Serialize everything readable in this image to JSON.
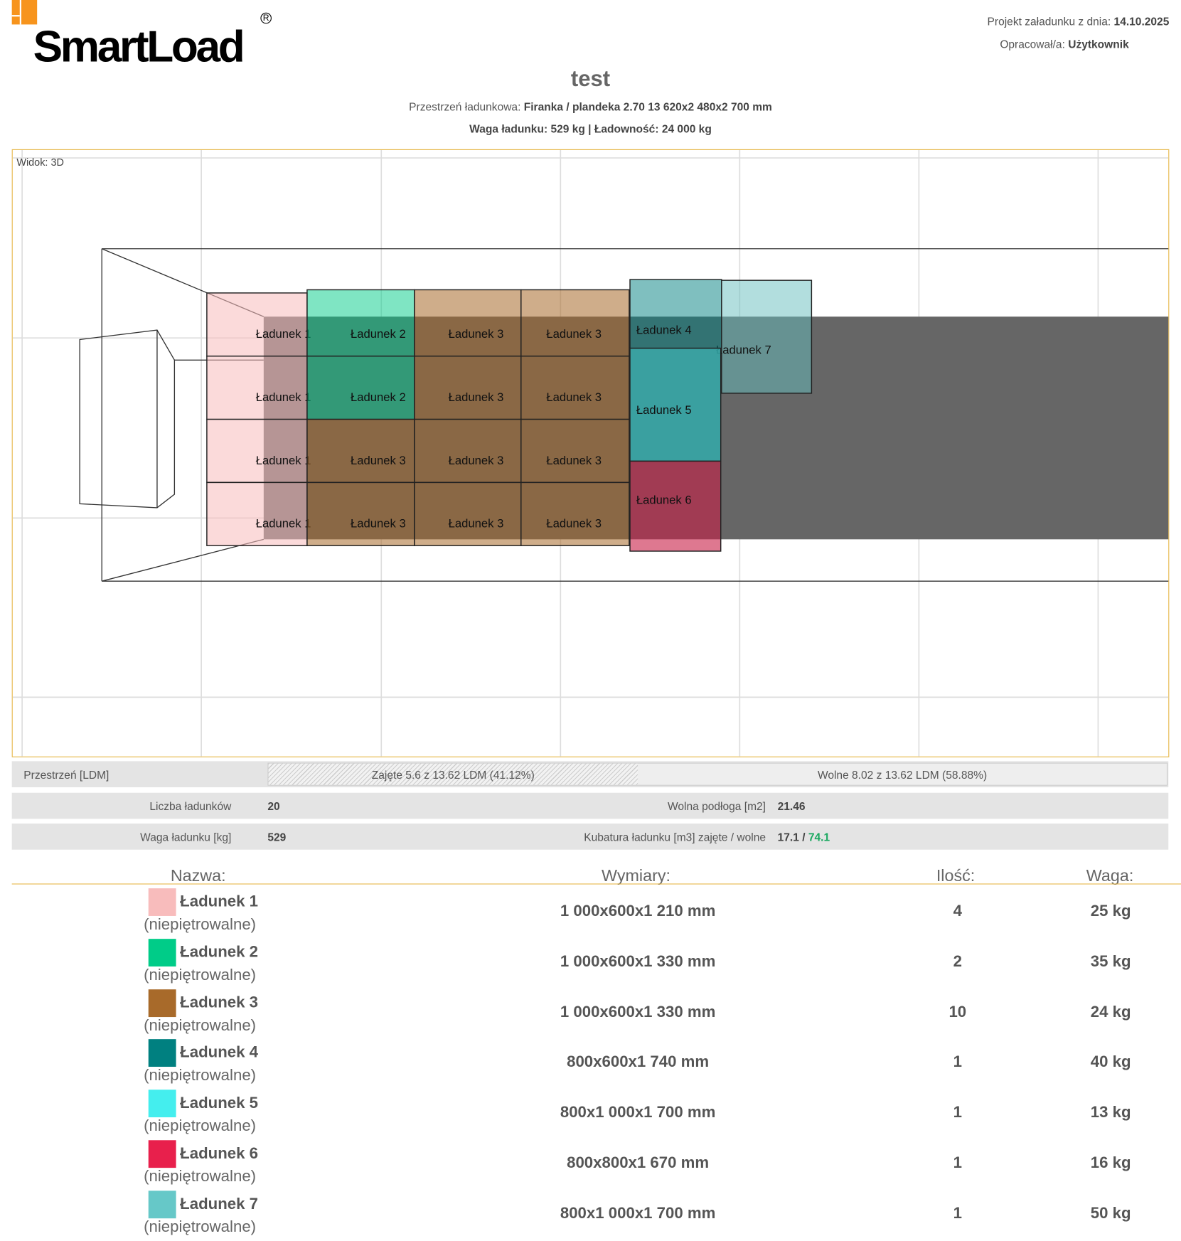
{
  "header": {
    "logo_text": "SmartLoad",
    "date_label": "Projekt załadunku z dnia:",
    "date_value": "14.10.2025",
    "author_label": "Opracował/a:",
    "author_value": "Użytkownik",
    "title": "test",
    "space_label": "Przestrzeń ładunkowa:",
    "space_value": "Firanka / plandeka 2.70 13 620x2 480x2 700 mm",
    "weight_line": "Waga ładunku: 529 kg | Ładowność: 24 000 kg"
  },
  "view": {
    "label": "Widok: 3D",
    "box_label_prefix": "Ładunek"
  },
  "stats": {
    "ldm_label": "Przestrzeń [LDM]",
    "ldm_used_text": "Zajęte 5.6 z 13.62 LDM (41.12%)",
    "ldm_free_text": "Wolne 8.02 z 13.62 LDM (58.88%)",
    "ldm_used_percent": 41.12,
    "count_label": "Liczba ładunków",
    "count_value": "20",
    "floor_label": "Wolna podłoga [m2]",
    "floor_value": "21.46",
    "weight_label": "Waga ładunku [kg]",
    "weight_value": "529",
    "volume_label": "Kubatura ładunku [m3] zajęte / wolne",
    "volume_used": "17.1",
    "volume_sep": " / ",
    "volume_free": "74.1",
    "free_color": "#1aa860"
  },
  "table": {
    "headers": [
      "Nazwa:",
      "Wymiary:",
      "Ilość:",
      "Waga:"
    ],
    "rows": [
      {
        "name": "Ładunek 1",
        "note": "(niepiętrowalne)",
        "dims": "1 000x600x1 210 mm",
        "qty": "4",
        "weight": "25 kg",
        "color": "#f8bcbc"
      },
      {
        "name": "Ładunek 2",
        "note": "(niepiętrowalne)",
        "dims": "1 000x600x1 330 mm",
        "qty": "2",
        "weight": "35 kg",
        "color": "#00cc88"
      },
      {
        "name": "Ładunek 3",
        "note": "(niepiętrowalne)",
        "dims": "1 000x600x1 330 mm",
        "qty": "10",
        "weight": "24 kg",
        "color": "#a86a2a"
      },
      {
        "name": "Ładunek 4",
        "note": "(niepiętrowalne)",
        "dims": "800x600x1 740 mm",
        "qty": "1",
        "weight": "40 kg",
        "color": "#008080"
      },
      {
        "name": "Ładunek 5",
        "note": "(niepiętrowalne)",
        "dims": "800x1 000x1 700 mm",
        "qty": "1",
        "weight": "13 kg",
        "color": "#44eeee"
      },
      {
        "name": "Ładunek 6",
        "note": "(niepiętrowalne)",
        "dims": "800x800x1 670 mm",
        "qty": "1",
        "weight": "16 kg",
        "color": "#e8204c"
      },
      {
        "name": "Ładunek 7",
        "note": "(niepiętrowalne)",
        "dims": "800x1 000x1 700 mm",
        "qty": "1",
        "weight": "50 kg",
        "color": "#66c8c8"
      }
    ]
  }
}
